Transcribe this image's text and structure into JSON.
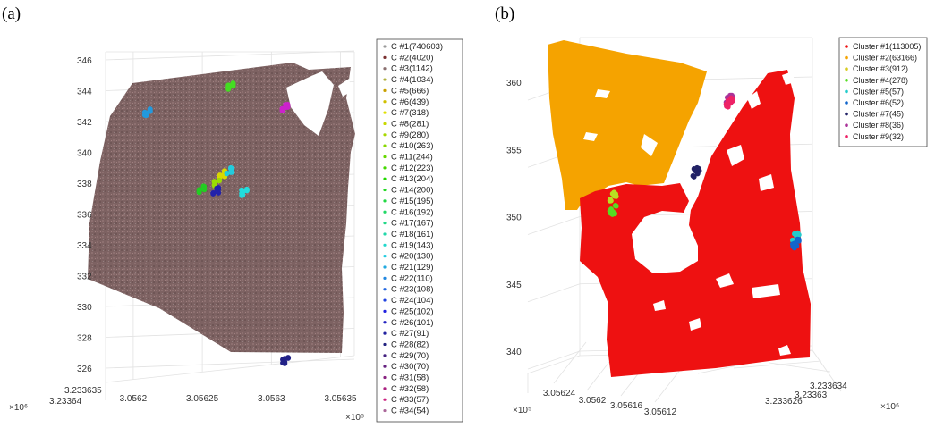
{
  "chart_data": [
    {
      "type": "scatter",
      "panel_label": "(a)",
      "projection": "3d",
      "grid": true,
      "legend_position": "right",
      "z_ticks": [
        "326",
        "328",
        "330",
        "332",
        "334",
        "336",
        "338",
        "340",
        "342",
        "344",
        "346"
      ],
      "x_ticks": [
        "3.0562",
        "3.05625",
        "3.0563",
        "3.05635"
      ],
      "x_multiplier": "×10⁵",
      "y_ticks": [
        "3.23364",
        "3.233635"
      ],
      "y_multiplier": "×10⁶",
      "legend": [
        {
          "label": "C #1(740603)",
          "color": "#9a9a9a"
        },
        {
          "label": "C #2(4020)",
          "color": "#7a3030"
        },
        {
          "label": "C #3(1142)",
          "color": "#8a7070"
        },
        {
          "label": "C #4(1034)",
          "color": "#b0b040"
        },
        {
          "label": "C #5(666)",
          "color": "#c8a000"
        },
        {
          "label": "C #6(439)",
          "color": "#d0c000"
        },
        {
          "label": "C #7(318)",
          "color": "#e0e000"
        },
        {
          "label": "C #8(281)",
          "color": "#c8d800"
        },
        {
          "label": "C #9(280)",
          "color": "#a8d800"
        },
        {
          "label": "C #10(263)",
          "color": "#88d800"
        },
        {
          "label": "C #11(244)",
          "color": "#66d800"
        },
        {
          "label": "C #12(223)",
          "color": "#44d800"
        },
        {
          "label": "C #13(204)",
          "color": "#22d800"
        },
        {
          "label": "C #14(200)",
          "color": "#22d822"
        },
        {
          "label": "C #15(195)",
          "color": "#22d844"
        },
        {
          "label": "C #16(192)",
          "color": "#22d866"
        },
        {
          "label": "C #17(167)",
          "color": "#22d888"
        },
        {
          "label": "C #18(161)",
          "color": "#22d8aa"
        },
        {
          "label": "C #19(143)",
          "color": "#22d8cc"
        },
        {
          "label": "C #20(130)",
          "color": "#22cce0"
        },
        {
          "label": "C #21(129)",
          "color": "#22aae0"
        },
        {
          "label": "C #22(110)",
          "color": "#2288e0"
        },
        {
          "label": "C #23(108)",
          "color": "#2266e0"
        },
        {
          "label": "C #24(104)",
          "color": "#2244e0"
        },
        {
          "label": "C #25(102)",
          "color": "#2222e0"
        },
        {
          "label": "C #26(101)",
          "color": "#2222c0"
        },
        {
          "label": "C #27(91)",
          "color": "#2222a0"
        },
        {
          "label": "C #28(82)",
          "color": "#222280"
        },
        {
          "label": "C #29(70)",
          "color": "#442280"
        },
        {
          "label": "C #30(70)",
          "color": "#662280"
        },
        {
          "label": "C #31(58)",
          "color": "#882280"
        },
        {
          "label": "C #32(58)",
          "color": "#aa2280"
        },
        {
          "label": "C #33(57)",
          "color": "#cc2280"
        },
        {
          "label": "C #34(54)",
          "color": "#aa6699"
        }
      ],
      "clusters": [
        {
          "id": "C #1",
          "x": 3.05628,
          "z": 336.0,
          "color": "#7d6060"
        },
        {
          "id": "C #4",
          "x": 3.05627,
          "z": 344.3,
          "color": "#44dd22"
        },
        {
          "id": "C #5",
          "x": 3.056265,
          "z": 338.6,
          "color": "#d8d800"
        },
        {
          "id": "C #9",
          "x": 3.05626,
          "z": 338.0,
          "color": "#99dd00"
        },
        {
          "id": "C #12",
          "x": 3.05625,
          "z": 337.6,
          "color": "#22cc22"
        },
        {
          "id": "C #19",
          "x": 3.05628,
          "z": 337.4,
          "color": "#22dddd"
        },
        {
          "id": "C #20",
          "x": 3.05627,
          "z": 338.8,
          "color": "#22ccdd"
        },
        {
          "id": "C #22",
          "x": 3.05621,
          "z": 342.6,
          "color": "#2299dd"
        },
        {
          "id": "C #26",
          "x": 3.05626,
          "z": 337.5,
          "color": "#2222aa"
        },
        {
          "id": "C #27",
          "x": 3.05631,
          "z": 326.5,
          "color": "#222288"
        },
        {
          "id": "C #32",
          "x": 3.05631,
          "z": 342.9,
          "color": "#cc22cc"
        }
      ]
    },
    {
      "type": "scatter",
      "panel_label": "(b)",
      "projection": "3d",
      "grid": true,
      "legend_position": "top-right",
      "z_ticks": [
        "340",
        "345",
        "350",
        "355",
        "360"
      ],
      "x_ticks": [
        "3.05624",
        "3.0562",
        "3.05616",
        "3.05612"
      ],
      "x_multiplier": "×10⁵",
      "y_ticks": [
        "3.233634",
        "3.23363",
        "3.233626"
      ],
      "y_multiplier": "×10⁶",
      "legend": [
        {
          "label": "Cluster #1(113005)",
          "color": "#ee1111"
        },
        {
          "label": "Cluster #2(63166)",
          "color": "#f5a300"
        },
        {
          "label": "Cluster #3(912)",
          "color": "#d8cc22"
        },
        {
          "label": "Cluster #4(278)",
          "color": "#55dd22"
        },
        {
          "label": "Cluster #5(57)",
          "color": "#22cccc"
        },
        {
          "label": "Cluster #6(52)",
          "color": "#1166cc"
        },
        {
          "label": "Cluster #7(45)",
          "color": "#222266"
        },
        {
          "label": "Cluster #8(36)",
          "color": "#aa3399"
        },
        {
          "label": "Cluster #9(32)",
          "color": "#ee2266"
        }
      ],
      "clusters": [
        {
          "id": "Cluster #1",
          "x": 3.05618,
          "z": 346.0,
          "color": "#ee1111"
        },
        {
          "id": "Cluster #2",
          "x": 3.0562,
          "z": 357.5,
          "color": "#f5a300"
        },
        {
          "id": "Cluster #3",
          "x": 3.05623,
          "z": 351.5,
          "color": "#b8dd22"
        },
        {
          "id": "Cluster #4",
          "x": 3.05623,
          "z": 350.5,
          "color": "#55dd22"
        },
        {
          "id": "Cluster #5",
          "x": 3.05612,
          "z": 348.5,
          "color": "#22cccc"
        },
        {
          "id": "Cluster #6",
          "x": 3.05612,
          "z": 348.0,
          "color": "#1166cc"
        },
        {
          "id": "Cluster #7",
          "x": 3.05618,
          "z": 353.3,
          "color": "#222266"
        },
        {
          "id": "Cluster #8",
          "x": 3.05616,
          "z": 358.7,
          "color": "#aa3399"
        },
        {
          "id": "Cluster #9",
          "x": 3.05616,
          "z": 358.5,
          "color": "#ee2266"
        }
      ]
    }
  ]
}
